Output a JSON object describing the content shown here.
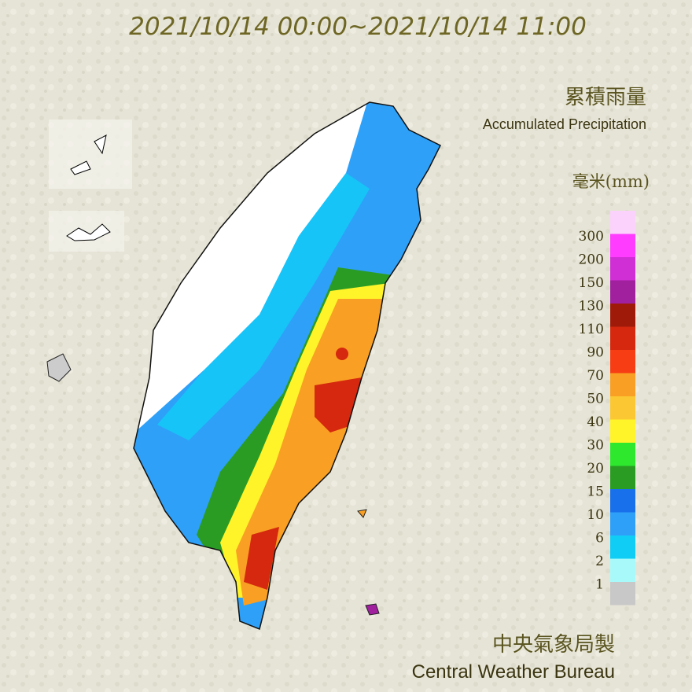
{
  "header": {
    "title": "2021/10/14 00:00~2021/10/14 11:00"
  },
  "legend": {
    "title_zh": "累積雨量",
    "title_en": "Accumulated Precipitation",
    "unit": "毫米(mm)",
    "top_color": "#fbd2fb",
    "levels": [
      {
        "value": 300,
        "color": "#ff3cff"
      },
      {
        "value": 200,
        "color": "#d12fd6"
      },
      {
        "value": 150,
        "color": "#a0209e"
      },
      {
        "value": 130,
        "color": "#a01a0a"
      },
      {
        "value": 110,
        "color": "#d5280e"
      },
      {
        "value": 90,
        "color": "#f73d14"
      },
      {
        "value": 70,
        "color": "#f9a024"
      },
      {
        "value": 50,
        "color": "#fbc834"
      },
      {
        "value": 40,
        "color": "#fff42a"
      },
      {
        "value": 30,
        "color": "#2ee82e"
      },
      {
        "value": 20,
        "color": "#2a9c24"
      },
      {
        "value": 15,
        "color": "#1870ea"
      },
      {
        "value": 10,
        "color": "#2ea0f8"
      },
      {
        "value": 6,
        "color": "#10cdf6"
      },
      {
        "value": 2,
        "color": "#a8fafa"
      },
      {
        "value": 1,
        "color": "#c8c8c8"
      }
    ]
  },
  "footer": {
    "agency_zh": "中央氣象局製",
    "agency_en": "Central Weather Bureau"
  }
}
